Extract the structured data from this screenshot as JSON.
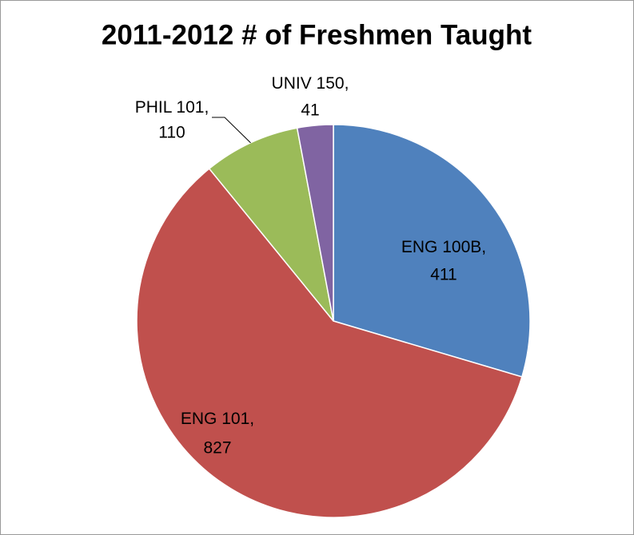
{
  "chart_data": {
    "type": "pie",
    "title": "2011-2012 # of Freshmen Taught",
    "categories": [
      "ENG 100B",
      "ENG 101",
      "PHIL 101",
      "UNIV 150"
    ],
    "values": [
      411,
      827,
      110,
      41
    ],
    "colors": [
      "#4f81bd",
      "#c0504d",
      "#9bbb59",
      "#8064a2"
    ],
    "label_separator": ","
  }
}
